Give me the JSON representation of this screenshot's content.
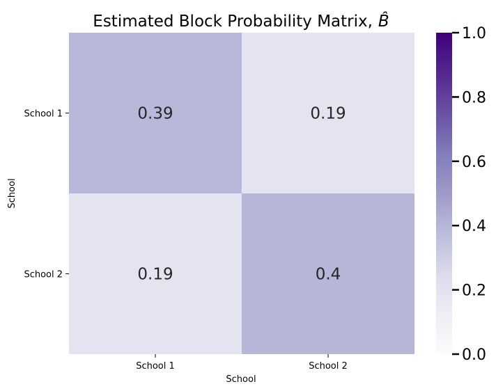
{
  "chart_data": {
    "type": "heatmap",
    "title": "Estimated Block Probability Matrix, B̂",
    "title_parts": {
      "main": "Estimated Block Probability Matrix,",
      "symbol": "B̂"
    },
    "xlabel": "School",
    "ylabel": "School",
    "x_categories": [
      "School 1",
      "School 2"
    ],
    "y_categories": [
      "School 1",
      "School 2"
    ],
    "values": [
      [
        0.39,
        0.19
      ],
      [
        0.19,
        0.4
      ]
    ],
    "value_labels": [
      [
        "0.39",
        "0.19"
      ],
      [
        "0.19",
        "0.4"
      ]
    ],
    "colorbar": {
      "range": [
        0,
        1
      ],
      "ticks": [
        0.0,
        0.2,
        0.4,
        0.6,
        0.8,
        1.0
      ],
      "tick_labels": [
        "0.0",
        "0.2",
        "0.4",
        "0.6",
        "0.8",
        "1.0"
      ],
      "colormap": "Purples",
      "colormap_stops": [
        "#fcfbfd",
        "#efedf5",
        "#dadaeb",
        "#bcbddc",
        "#9e9ac8",
        "#807dba",
        "#6a51a3",
        "#54278f",
        "#3f007d"
      ]
    },
    "grid": false
  }
}
